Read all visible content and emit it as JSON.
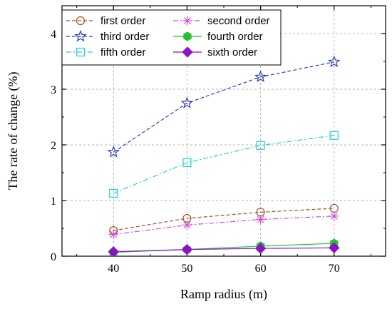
{
  "chart_data": {
    "type": "line",
    "xlabel": "Ramp radius (m)",
    "ylabel": "The rate of change (%)",
    "x": [
      40,
      50,
      60,
      70
    ],
    "xlim": [
      33,
      77
    ],
    "ylim": [
      0,
      4.5
    ],
    "xticks": [
      "40",
      "50",
      "60",
      "70"
    ],
    "yticks": [
      "0",
      "1",
      "2",
      "3",
      "4"
    ],
    "grid": true,
    "legend_position": "top-left",
    "series": [
      {
        "name": "first order",
        "values": [
          0.46,
          0.68,
          0.79,
          0.86
        ],
        "color": "#a0522d",
        "marker": "circle",
        "dash": "dashed"
      },
      {
        "name": "second order",
        "values": [
          0.39,
          0.56,
          0.66,
          0.72
        ],
        "color": "#d64fd6",
        "marker": "asterisk",
        "dash": "dashdot"
      },
      {
        "name": "third order",
        "values": [
          1.87,
          2.75,
          3.22,
          3.49
        ],
        "color": "#2e3fb8",
        "marker": "star",
        "dash": "dashed"
      },
      {
        "name": "fourth order",
        "values": [
          0.07,
          0.12,
          0.18,
          0.23
        ],
        "color": "#22c22e",
        "marker": "hexagon",
        "dash": "solid"
      },
      {
        "name": "fifth order",
        "values": [
          1.13,
          1.68,
          1.99,
          2.17
        ],
        "color": "#22cfd9",
        "marker": "square",
        "dash": "dashdot"
      },
      {
        "name": "sixth order",
        "values": [
          0.08,
          0.12,
          0.14,
          0.15
        ],
        "color": "#8a12c8",
        "marker": "diamond",
        "dash": "solid"
      }
    ]
  }
}
